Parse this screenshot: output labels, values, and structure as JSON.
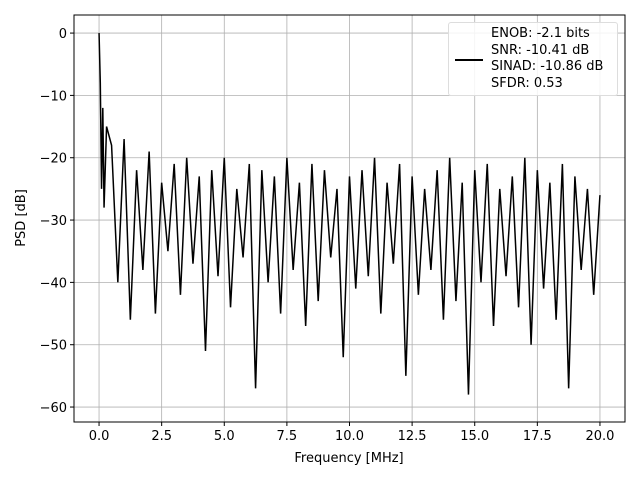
{
  "chart_data": {
    "type": "line",
    "xlabel": "Frequency [MHz]",
    "ylabel": "PSD [dB]",
    "x": [
      0,
      0.05,
      0.1,
      0.15,
      0.2,
      0.3,
      0.5,
      0.75,
      1,
      1.25,
      1.5,
      1.75,
      2,
      2.25,
      2.5,
      2.75,
      3,
      3.25,
      3.5,
      3.75,
      4,
      4.25,
      4.5,
      4.75,
      5,
      5.25,
      5.5,
      5.75,
      6,
      6.25,
      6.5,
      6.75,
      7,
      7.25,
      7.5,
      7.75,
      8,
      8.25,
      8.5,
      8.75,
      9,
      9.25,
      9.5,
      9.75,
      10,
      10.25,
      10.5,
      10.75,
      11,
      11.25,
      11.5,
      11.75,
      12,
      12.25,
      12.5,
      12.75,
      13,
      13.25,
      13.5,
      13.75,
      14,
      14.25,
      14.5,
      14.75,
      15,
      15.25,
      15.5,
      15.75,
      16,
      16.25,
      16.5,
      16.75,
      17,
      17.25,
      17.5,
      17.75,
      18,
      18.25,
      18.5,
      18.75,
      19,
      19.25,
      19.5,
      19.75,
      20
    ],
    "series": [
      {
        "name": "ENOB: -2.1 bits\nSNR: -10.41 dB\nSINAD: -10.86 dB\nSFDR: 0.53",
        "color": "#000000",
        "values": [
          0,
          -8,
          -25,
          -12,
          -28,
          -15,
          -18,
          -40,
          -17,
          -46,
          -22,
          -38,
          -19,
          -45,
          -24,
          -35,
          -21,
          -42,
          -20,
          -37,
          -23,
          -51,
          -22,
          -39,
          -20,
          -44,
          -25,
          -36,
          -21,
          -57,
          -22,
          -40,
          -23,
          -45,
          -20,
          -38,
          -24,
          -47,
          -21,
          -43,
          -22,
          -36,
          -25,
          -52,
          -23,
          -41,
          -22,
          -39,
          -20,
          -45,
          -24,
          -37,
          -21,
          -55,
          -23,
          -42,
          -25,
          -38,
          -22,
          -46,
          -20,
          -43,
          -24,
          -58,
          -22,
          -40,
          -21,
          -47,
          -25,
          -39,
          -23,
          -44,
          -20,
          -50,
          -22,
          -41,
          -24,
          -46,
          -21,
          -57,
          -23,
          -38,
          -25,
          -42,
          -26
        ]
      }
    ],
    "xlim": [
      -1,
      21
    ],
    "ylim": [
      -62.4,
      2.9
    ],
    "xticks": [
      {
        "value": 0,
        "label": "0.0"
      },
      2.5,
      {
        "value": 5,
        "label": "5.0"
      },
      7.5,
      {
        "value": 10,
        "label": "10.0"
      },
      12.5,
      {
        "value": 15,
        "label": "15.0"
      },
      17.5,
      {
        "value": 20,
        "label": "20.0"
      }
    ],
    "yticks": [
      {
        "value": -60,
        "label": "−60"
      },
      {
        "value": -50,
        "label": "−50"
      },
      {
        "value": -40,
        "label": "−40"
      },
      {
        "value": -30,
        "label": "−30"
      },
      {
        "value": -20,
        "label": "−20"
      },
      {
        "value": -10,
        "label": "−10"
      },
      0
    ],
    "grid": true
  }
}
